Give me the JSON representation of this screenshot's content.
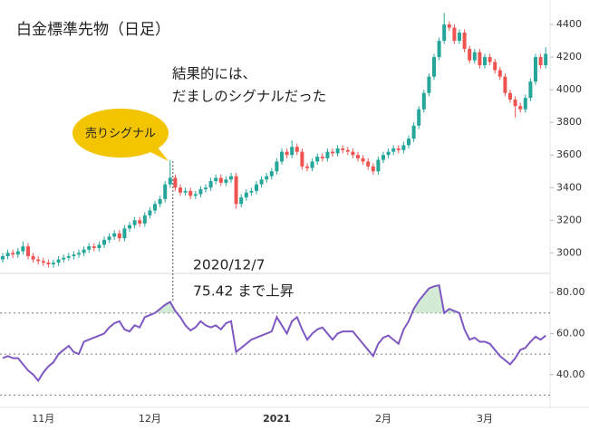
{
  "chart_data": [
    {
      "type": "candlestick",
      "title": "白金標準先物（日足）",
      "categories": [
        null,
        null,
        null,
        null,
        null,
        null,
        null,
        null,
        "11月",
        null,
        null,
        null,
        null,
        null,
        null,
        null,
        null,
        null,
        null,
        null,
        null,
        null,
        null,
        null,
        null,
        null,
        null,
        null,
        null,
        "12月",
        null,
        null,
        null,
        null,
        null,
        null,
        null,
        null,
        null,
        null,
        null,
        null,
        null,
        null,
        null,
        null,
        null,
        null,
        null,
        null,
        null,
        null,
        null,
        null,
        "2021",
        null,
        null,
        null,
        null,
        null,
        null,
        null,
        null,
        null,
        null,
        null,
        null,
        null,
        null,
        null,
        null,
        null,
        null,
        null,
        null,
        "2月",
        null,
        null,
        null,
        null,
        null,
        null,
        null,
        null,
        null,
        null,
        null,
        null,
        null,
        null,
        null,
        null,
        null,
        null,
        null,
        "3月",
        null,
        null,
        null,
        null,
        null,
        null,
        null,
        null,
        null,
        null,
        null,
        null
      ],
      "open": [
        2960,
        2980,
        3000,
        2990,
        3010,
        3040,
        2980,
        2960,
        2950,
        2940,
        2930,
        2940,
        2960,
        2970,
        2980,
        2990,
        3000,
        3020,
        3040,
        3030,
        3050,
        3080,
        3100,
        3120,
        3090,
        3150,
        3170,
        3200,
        3180,
        3230,
        3260,
        3300,
        3330,
        3420,
        3460,
        3400,
        3370,
        3380,
        3350,
        3360,
        3390,
        3400,
        3440,
        3460,
        3430,
        3450,
        3470,
        3300,
        3340,
        3370,
        3380,
        3420,
        3450,
        3470,
        3500,
        3560,
        3620,
        3600,
        3650,
        3620,
        3530,
        3520,
        3560,
        3590,
        3580,
        3620,
        3610,
        3640,
        3630,
        3620,
        3600,
        3580,
        3560,
        3530,
        3500,
        3570,
        3600,
        3620,
        3640,
        3630,
        3660,
        3700,
        3780,
        3880,
        3980,
        4080,
        4200,
        4300,
        4400,
        4380,
        4300,
        4350,
        4250,
        4180,
        4230,
        4150,
        4200,
        4170,
        4120,
        4080,
        3980,
        3940,
        3900,
        3880,
        3950,
        4050,
        4200,
        4150
      ],
      "high": [
        3000,
        3020,
        3020,
        3030,
        3070,
        3060,
        3000,
        2980,
        2970,
        2960,
        2960,
        2980,
        2990,
        3000,
        3010,
        3020,
        3040,
        3060,
        3060,
        3070,
        3100,
        3120,
        3140,
        3140,
        3170,
        3190,
        3220,
        3220,
        3250,
        3280,
        3320,
        3350,
        3440,
        3570,
        3480,
        3420,
        3400,
        3400,
        3380,
        3410,
        3420,
        3460,
        3480,
        3480,
        3470,
        3490,
        3490,
        3360,
        3390,
        3400,
        3440,
        3470,
        3490,
        3520,
        3580,
        3640,
        3640,
        3690,
        3670,
        3640,
        3550,
        3580,
        3610,
        3610,
        3640,
        3640,
        3660,
        3660,
        3650,
        3640,
        3620,
        3600,
        3580,
        3550,
        3590,
        3620,
        3640,
        3660,
        3660,
        3680,
        3720,
        3800,
        3900,
        4000,
        4100,
        4220,
        4320,
        4470,
        4420,
        4400,
        4370,
        4370,
        4270,
        4250,
        4250,
        4220,
        4220,
        4190,
        4140,
        4100,
        4000,
        3960,
        3920,
        3970,
        4070,
        4220,
        4220,
        4260
      ],
      "low": [
        2940,
        2960,
        2970,
        2970,
        2990,
        2960,
        2940,
        2930,
        2920,
        2910,
        2910,
        2920,
        2940,
        2950,
        2960,
        2970,
        2980,
        3000,
        3010,
        3010,
        3030,
        3060,
        3080,
        3070,
        3070,
        3130,
        3150,
        3160,
        3160,
        3210,
        3240,
        3280,
        3310,
        3400,
        3380,
        3350,
        3350,
        3330,
        3330,
        3340,
        3370,
        3380,
        3420,
        3410,
        3410,
        3430,
        3270,
        3280,
        3320,
        3350,
        3360,
        3400,
        3430,
        3450,
        3480,
        3540,
        3580,
        3580,
        3600,
        3510,
        3500,
        3500,
        3540,
        3560,
        3560,
        3590,
        3590,
        3610,
        3600,
        3580,
        3560,
        3540,
        3510,
        3480,
        3480,
        3550,
        3580,
        3600,
        3610,
        3610,
        3640,
        3680,
        3760,
        3860,
        3960,
        4060,
        4180,
        4280,
        4360,
        4280,
        4280,
        4230,
        4160,
        4160,
        4130,
        4130,
        4150,
        4100,
        4060,
        3960,
        3920,
        3830,
        3860,
        3860,
        3930,
        4030,
        4130,
        4130
      ],
      "close": [
        2980,
        3000,
        2990,
        3010,
        3040,
        2980,
        2960,
        2950,
        2940,
        2930,
        2940,
        2960,
        2970,
        2980,
        2990,
        3000,
        3020,
        3040,
        3030,
        3050,
        3080,
        3100,
        3120,
        3090,
        3150,
        3170,
        3200,
        3180,
        3230,
        3260,
        3300,
        3330,
        3420,
        3460,
        3400,
        3370,
        3380,
        3350,
        3360,
        3390,
        3400,
        3440,
        3460,
        3430,
        3450,
        3470,
        3300,
        3340,
        3370,
        3380,
        3420,
        3450,
        3470,
        3500,
        3560,
        3620,
        3600,
        3650,
        3620,
        3530,
        3520,
        3560,
        3590,
        3580,
        3620,
        3610,
        3640,
        3630,
        3620,
        3600,
        3580,
        3560,
        3530,
        3500,
        3570,
        3600,
        3620,
        3640,
        3630,
        3660,
        3700,
        3780,
        3880,
        3980,
        4080,
        4200,
        4300,
        4400,
        4380,
        4300,
        4350,
        4250,
        4180,
        4230,
        4150,
        4200,
        4170,
        4120,
        4080,
        3980,
        3940,
        3900,
        3880,
        3950,
        4050,
        4200,
        4150,
        4220
      ],
      "up_color": "#26a69a",
      "down_color": "#ef5350",
      "ylim": [
        2880,
        4550
      ],
      "yticks": [
        3000,
        3200,
        3400,
        3600,
        3800,
        4000,
        4200,
        4400
      ],
      "annotations": {
        "signal": "売りシグナル",
        "conclusion": [
          "結果的には、",
          "だましのシグナルだった"
        ]
      }
    },
    {
      "type": "line",
      "values": [
        48,
        49,
        48,
        48,
        45,
        42,
        40,
        37,
        41,
        44,
        46,
        50,
        52,
        54,
        51,
        50,
        56,
        57,
        58,
        59,
        60,
        63,
        65,
        66,
        62,
        61,
        64,
        63,
        68,
        69,
        70,
        72,
        74,
        75.42,
        71,
        68,
        64,
        61.5,
        63,
        66,
        64,
        63,
        64,
        62,
        65,
        66,
        51,
        53,
        55,
        57,
        58,
        59,
        60,
        61,
        68,
        64,
        60,
        66,
        68,
        62,
        57,
        60,
        62,
        63,
        60,
        57,
        60,
        61,
        61,
        61,
        58,
        55,
        52,
        49,
        55,
        58,
        59,
        57,
        55,
        62,
        66,
        72,
        76,
        79,
        82,
        83,
        83.5,
        70,
        72,
        71,
        70,
        62,
        57,
        58,
        56,
        56,
        55,
        52,
        49,
        47,
        45,
        48,
        52,
        53,
        56,
        58.5,
        57,
        59
      ],
      "color": "#7e57c2",
      "fill_color": "#c8e6c9",
      "ylim": [
        24,
        88
      ],
      "yticks": [
        {
          "value": 40,
          "label": "40.00"
        },
        {
          "value": 60,
          "label": "60.00"
        },
        {
          "value": 80,
          "label": "80.00"
        }
      ],
      "levels": [
        30,
        50,
        70
      ],
      "annotations": {
        "date": "2020/12/7",
        "peak": "75.42 まで上昇"
      }
    }
  ]
}
